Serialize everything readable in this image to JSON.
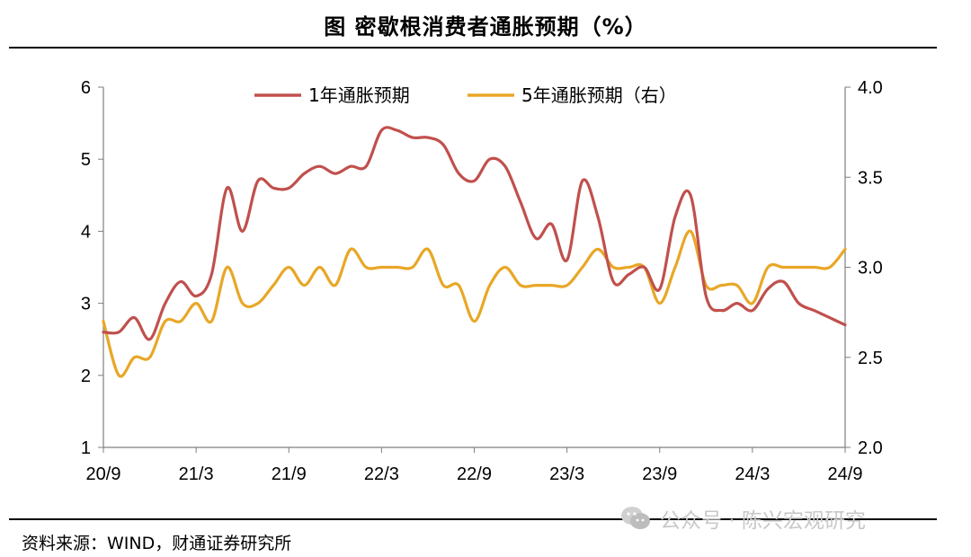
{
  "page": {
    "title": "图  密歇根消费者通胀预期（%）",
    "source": "资料来源：WIND，财通证券研究所",
    "watermark": "公众号 · 陈兴宏观研究"
  },
  "chart_data": {
    "type": "line",
    "title": "图  密歇根消费者通胀预期（%）",
    "x_tick_labels": [
      "20/9",
      "21/3",
      "21/9",
      "22/3",
      "22/9",
      "23/3",
      "23/9",
      "24/3",
      "24/9"
    ],
    "x_start": "2020-09",
    "x_end": "2024-09",
    "y_left": {
      "range": [
        1,
        6
      ],
      "ticks": [
        "1",
        "2",
        "3",
        "4",
        "5",
        "6"
      ]
    },
    "y_right": {
      "range": [
        2.0,
        4.0
      ],
      "ticks": [
        "2.0",
        "2.5",
        "3.0",
        "3.5",
        "4.0"
      ]
    },
    "grid": false,
    "legend_position": "top-center",
    "series": [
      {
        "name": "1年通胀预期",
        "axis": "left",
        "color": "#c0504d",
        "x": [
          "2020-09",
          "2020-10",
          "2020-11",
          "2020-12",
          "2021-01",
          "2021-02",
          "2021-03",
          "2021-04",
          "2021-05",
          "2021-06",
          "2021-07",
          "2021-08",
          "2021-09",
          "2021-10",
          "2021-11",
          "2021-12",
          "2022-01",
          "2022-02",
          "2022-03",
          "2022-04",
          "2022-05",
          "2022-06",
          "2022-07",
          "2022-08",
          "2022-09",
          "2022-10",
          "2022-11",
          "2022-12",
          "2023-01",
          "2023-02",
          "2023-03",
          "2023-04",
          "2023-05",
          "2023-06",
          "2023-07",
          "2023-08",
          "2023-09",
          "2023-10",
          "2023-11",
          "2023-12",
          "2024-01",
          "2024-02",
          "2024-03",
          "2024-04",
          "2024-05",
          "2024-06",
          "2024-07",
          "2024-08",
          "2024-09"
        ],
        "y": [
          2.6,
          2.6,
          2.8,
          2.5,
          3.0,
          3.3,
          3.1,
          3.4,
          4.6,
          4.0,
          4.7,
          4.6,
          4.6,
          4.8,
          4.9,
          4.8,
          4.9,
          4.9,
          5.4,
          5.4,
          5.3,
          5.3,
          5.2,
          4.8,
          4.7,
          5.0,
          4.9,
          4.4,
          3.9,
          4.1,
          3.6,
          4.7,
          4.2,
          3.3,
          3.4,
          3.5,
          3.2,
          4.2,
          4.5,
          3.1,
          2.9,
          3.0,
          2.9,
          3.2,
          3.3,
          3.0,
          2.9,
          2.8,
          2.7
        ]
      },
      {
        "name": "5年通胀预期（右）",
        "axis": "right",
        "color": "#e8a727",
        "x": [
          "2020-09",
          "2020-10",
          "2020-11",
          "2020-12",
          "2021-01",
          "2021-02",
          "2021-03",
          "2021-04",
          "2021-05",
          "2021-06",
          "2021-07",
          "2021-08",
          "2021-09",
          "2021-10",
          "2021-11",
          "2021-12",
          "2022-01",
          "2022-02",
          "2022-03",
          "2022-04",
          "2022-05",
          "2022-06",
          "2022-07",
          "2022-08",
          "2022-09",
          "2022-10",
          "2022-11",
          "2022-12",
          "2023-01",
          "2023-02",
          "2023-03",
          "2023-04",
          "2023-05",
          "2023-06",
          "2023-07",
          "2023-08",
          "2023-09",
          "2023-10",
          "2023-11",
          "2023-12",
          "2024-01",
          "2024-02",
          "2024-03",
          "2024-04",
          "2024-05",
          "2024-06",
          "2024-07",
          "2024-08",
          "2024-09"
        ],
        "y": [
          2.7,
          2.4,
          2.5,
          2.5,
          2.7,
          2.7,
          2.8,
          2.7,
          3.0,
          2.8,
          2.8,
          2.9,
          3.0,
          2.9,
          3.0,
          2.9,
          3.1,
          3.0,
          3.0,
          3.0,
          3.0,
          3.1,
          2.9,
          2.9,
          2.7,
          2.9,
          3.0,
          2.9,
          2.9,
          2.9,
          2.9,
          3.0,
          3.1,
          3.0,
          3.0,
          3.0,
          2.8,
          3.0,
          3.2,
          2.9,
          2.9,
          2.9,
          2.8,
          3.0,
          3.0,
          3.0,
          3.0,
          3.0,
          3.1
        ]
      }
    ]
  }
}
